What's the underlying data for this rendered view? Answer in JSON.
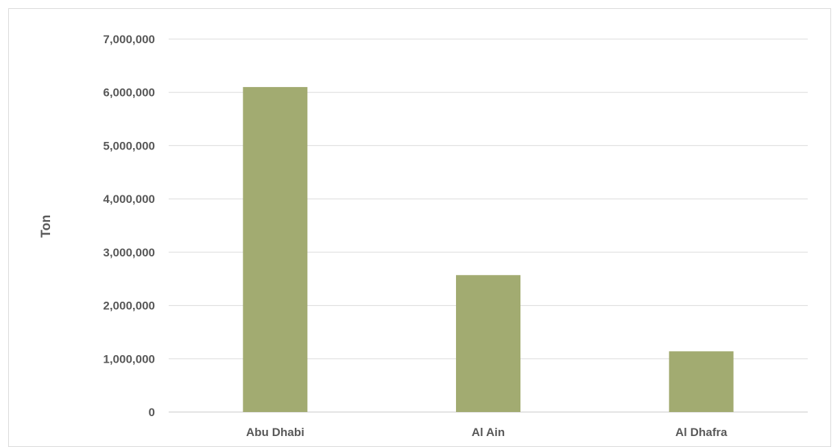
{
  "chart_data": {
    "type": "bar",
    "title": "",
    "xlabel": "",
    "ylabel": "Ton",
    "categories": [
      "Abu Dhabi",
      "Al Ain",
      "Al Dhafra"
    ],
    "series": [
      {
        "values": [
          6100000,
          2570000,
          1140000
        ],
        "color": "#a2ab71"
      }
    ],
    "ylim": [
      0,
      7000000
    ],
    "yticks": [
      0,
      1000000,
      2000000,
      3000000,
      4000000,
      5000000,
      6000000,
      7000000
    ],
    "ytick_labels": [
      "0",
      "1,000,000",
      "2,000,000",
      "3,000,000",
      "4,000,000",
      "5,000,000",
      "6,000,000",
      "7,000,000"
    ],
    "grid": true,
    "legend": "none",
    "gridline_color": "#d9d9d9"
  }
}
